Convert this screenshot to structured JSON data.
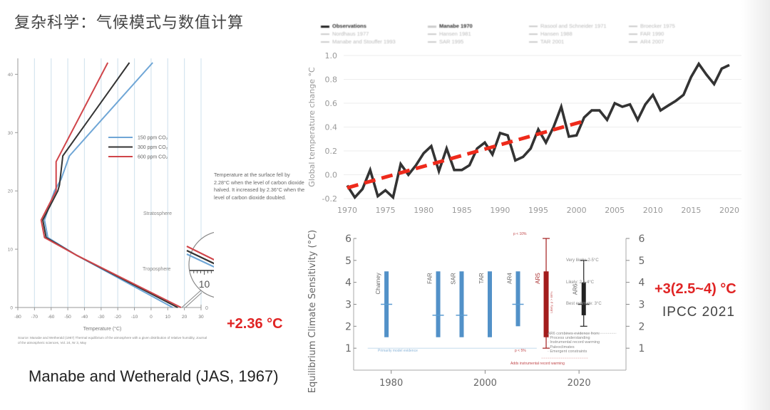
{
  "slide": {
    "title": "复杂科学：气候模式与数值计算",
    "caption": "Manabe and Wetherald (JAS, 1967)",
    "left_result": "+2.36 °C",
    "right_result": "+3(2.5~4) °C",
    "right_source": "IPCC 2021"
  },
  "chart_data": [
    {
      "type": "line",
      "id": "manabe-wetherald-profile",
      "title": "",
      "xlabel": "Temperature (°C)",
      "ylabel": "",
      "xlim": [
        -80,
        30
      ],
      "ylim": [
        0,
        42
      ],
      "xticks": [
        "-80",
        "-70",
        "-60",
        "-50",
        "-40",
        "-30",
        "-20",
        "-10",
        "0",
        "10",
        "20",
        "30"
      ],
      "yticks": [
        "0",
        "10",
        "20",
        "30",
        "40"
      ],
      "grid": "vertical",
      "legend": "center",
      "series": [
        {
          "name": "150 ppm CO₂",
          "color": "#6fa6d6",
          "points": [
            [
              13,
              0
            ],
            [
              -45,
              9
            ],
            [
              -62,
              12
            ],
            [
              -64,
              15
            ],
            [
              -58,
              20
            ],
            [
              -54,
              22
            ],
            [
              -49,
              26
            ],
            [
              1,
              42
            ]
          ]
        },
        {
          "name": "300 ppm CO₂",
          "color": "#333333",
          "points": [
            [
              16,
              0
            ],
            [
              -45,
              9
            ],
            [
              -63,
              12
            ],
            [
              -65,
              15
            ],
            [
              -56,
              20
            ],
            [
              -55,
              21
            ],
            [
              -53,
              26
            ],
            [
              -13,
              42
            ]
          ]
        },
        {
          "name": "600 ppm CO₂",
          "color": "#d0454a",
          "points": [
            [
              18,
              0
            ],
            [
              -45,
              9
            ],
            [
              -64,
              12
            ],
            [
              -66,
              15
            ],
            [
              -57,
              20
            ],
            [
              -57,
              25
            ],
            [
              -26,
              42
            ]
          ]
        }
      ],
      "annotations": [
        "Stratosphere",
        "Troposphere",
        "Temperature at the surface fell by 2.28°C when the level of carbon dioxide halved. It increased by 2.36°C when the level of carbon dioxide doubled."
      ],
      "inset": {
        "xticks": [
          "10",
          "20"
        ]
      },
      "source": "Source: Manabe and Wetherald (1967) Thermal equilibrium of the atmosphere with a given distribution of relative humidity, Journal of the atmospheric sciences, Vol. 24, Nr 3, May"
    },
    {
      "type": "line",
      "id": "global-temperature-change",
      "title": "",
      "xlabel": "Year",
      "ylabel": "Global temperature change °C",
      "xlim": [
        1970,
        2020
      ],
      "ylim": [
        -0.2,
        1.0
      ],
      "xticks": [
        "1970",
        "1975",
        "1980",
        "1985",
        "1990",
        "1995",
        "2000",
        "2005",
        "2010",
        "2015",
        "2020"
      ],
      "yticks": [
        "-0.2",
        "0.0",
        "0.2",
        "0.4",
        "0.6",
        "0.8",
        "1.0"
      ],
      "grid": "horizontal",
      "legend": "top",
      "legend_entries": [
        {
          "name": "Observations",
          "highlight": true
        },
        {
          "name": "Manabe 1970",
          "highlight": true
        },
        {
          "name": "Rasool and Schneider 1971",
          "highlight": false
        },
        {
          "name": "Broecker 1975",
          "highlight": false
        },
        {
          "name": "Nordhaus 1977",
          "highlight": false
        },
        {
          "name": "Hansen 1981",
          "highlight": false
        },
        {
          "name": "Hansen 1988",
          "highlight": false
        },
        {
          "name": "FAR 1990",
          "highlight": false
        },
        {
          "name": "Manabe and Stouffer 1993",
          "highlight": false
        },
        {
          "name": "SAR 1995",
          "highlight": false
        },
        {
          "name": "TAR 2001",
          "highlight": false
        },
        {
          "name": "AR4 2007",
          "highlight": false
        }
      ],
      "series": [
        {
          "name": "Observations",
          "color": "#333333",
          "x": [
            1970,
            1971,
            1972,
            1973,
            1974,
            1975,
            1976,
            1977,
            1978,
            1979,
            1980,
            1981,
            1982,
            1983,
            1984,
            1985,
            1986,
            1987,
            1988,
            1989,
            1990,
            1991,
            1992,
            1993,
            1994,
            1995,
            1996,
            1997,
            1998,
            1999,
            2000,
            2001,
            2002,
            2003,
            2004,
            2005,
            2006,
            2007,
            2008,
            2009,
            2010,
            2011,
            2012,
            2013,
            2014,
            2015,
            2016,
            2017,
            2018,
            2019,
            2020
          ],
          "values": [
            -0.09,
            -0.19,
            -0.12,
            0.04,
            -0.18,
            -0.13,
            -0.19,
            0.09,
            0.0,
            0.08,
            0.18,
            0.24,
            0.03,
            0.22,
            0.04,
            0.04,
            0.08,
            0.22,
            0.27,
            0.17,
            0.35,
            0.33,
            0.12,
            0.15,
            0.22,
            0.38,
            0.27,
            0.4,
            0.57,
            0.32,
            0.33,
            0.48,
            0.54,
            0.54,
            0.46,
            0.6,
            0.57,
            0.59,
            0.46,
            0.59,
            0.67,
            0.54,
            0.58,
            0.62,
            0.67,
            0.82,
            0.93,
            0.84,
            0.76,
            0.89,
            0.92
          ]
        },
        {
          "name": "Manabe 1970",
          "color": "#ee2a1b",
          "style": "dashed",
          "x": [
            1970,
            2001
          ],
          "values": [
            -0.11,
            0.45
          ]
        }
      ]
    },
    {
      "type": "bar",
      "id": "equilibrium-climate-sensitivity",
      "title": "",
      "xlabel": "",
      "ylabel": "Equilibrium Climate Sensitivity (°C)",
      "xlim": [
        1972,
        2030
      ],
      "ylim": [
        0,
        6
      ],
      "xticks": [
        "1980",
        "2000",
        "2020"
      ],
      "yticks": [
        "1",
        "2",
        "3",
        "4",
        "5",
        "6"
      ],
      "grid": "none",
      "categories": [
        "Charney",
        "FAR",
        "SAR",
        "TAR",
        "AR4",
        "AR5",
        "AR6"
      ],
      "series": [
        {
          "name": "Charney",
          "year": 1979,
          "low": 1.5,
          "high": 4.5,
          "best": 3.0,
          "color": "#5291c8"
        },
        {
          "name": "FAR",
          "year": 1990,
          "low": 1.5,
          "high": 4.5,
          "best": 2.5,
          "color": "#5291c8"
        },
        {
          "name": "SAR",
          "year": 1995,
          "low": 1.5,
          "high": 4.5,
          "best": 2.5,
          "color": "#5291c8"
        },
        {
          "name": "TAR",
          "year": 2001,
          "low": 1.5,
          "high": 4.5,
          "best": null,
          "color": "#5291c8"
        },
        {
          "name": "AR4",
          "year": 2007,
          "low": 2.0,
          "high": 4.5,
          "best": 3.0,
          "color": "#5291c8"
        },
        {
          "name": "AR5",
          "year": 2013,
          "low": 1.5,
          "high": 4.5,
          "whisker_low": 1.0,
          "whisker_high": 6.0,
          "best": null,
          "color": "#a31d1d"
        },
        {
          "name": "AR6",
          "year": 2021,
          "low": 2.5,
          "high": 4.0,
          "whisker_low": 2.0,
          "whisker_high": 5.0,
          "best": 3.0,
          "color": "#222222"
        }
      ],
      "annotations": [
        "Very likely: 2-5°C",
        "Likely: 2.5-4°C",
        "Best estimate: 3°C",
        "AR6 combines evidence from:",
        "· Process understanding",
        "· Instrumental record warming",
        "· Paleoclimates",
        "· Emergent constraints",
        "Primarily model evidence",
        "Adds instrumental record warming",
        "p < 10%",
        "p < 5%",
        "Likely, p > 66%"
      ]
    }
  ]
}
